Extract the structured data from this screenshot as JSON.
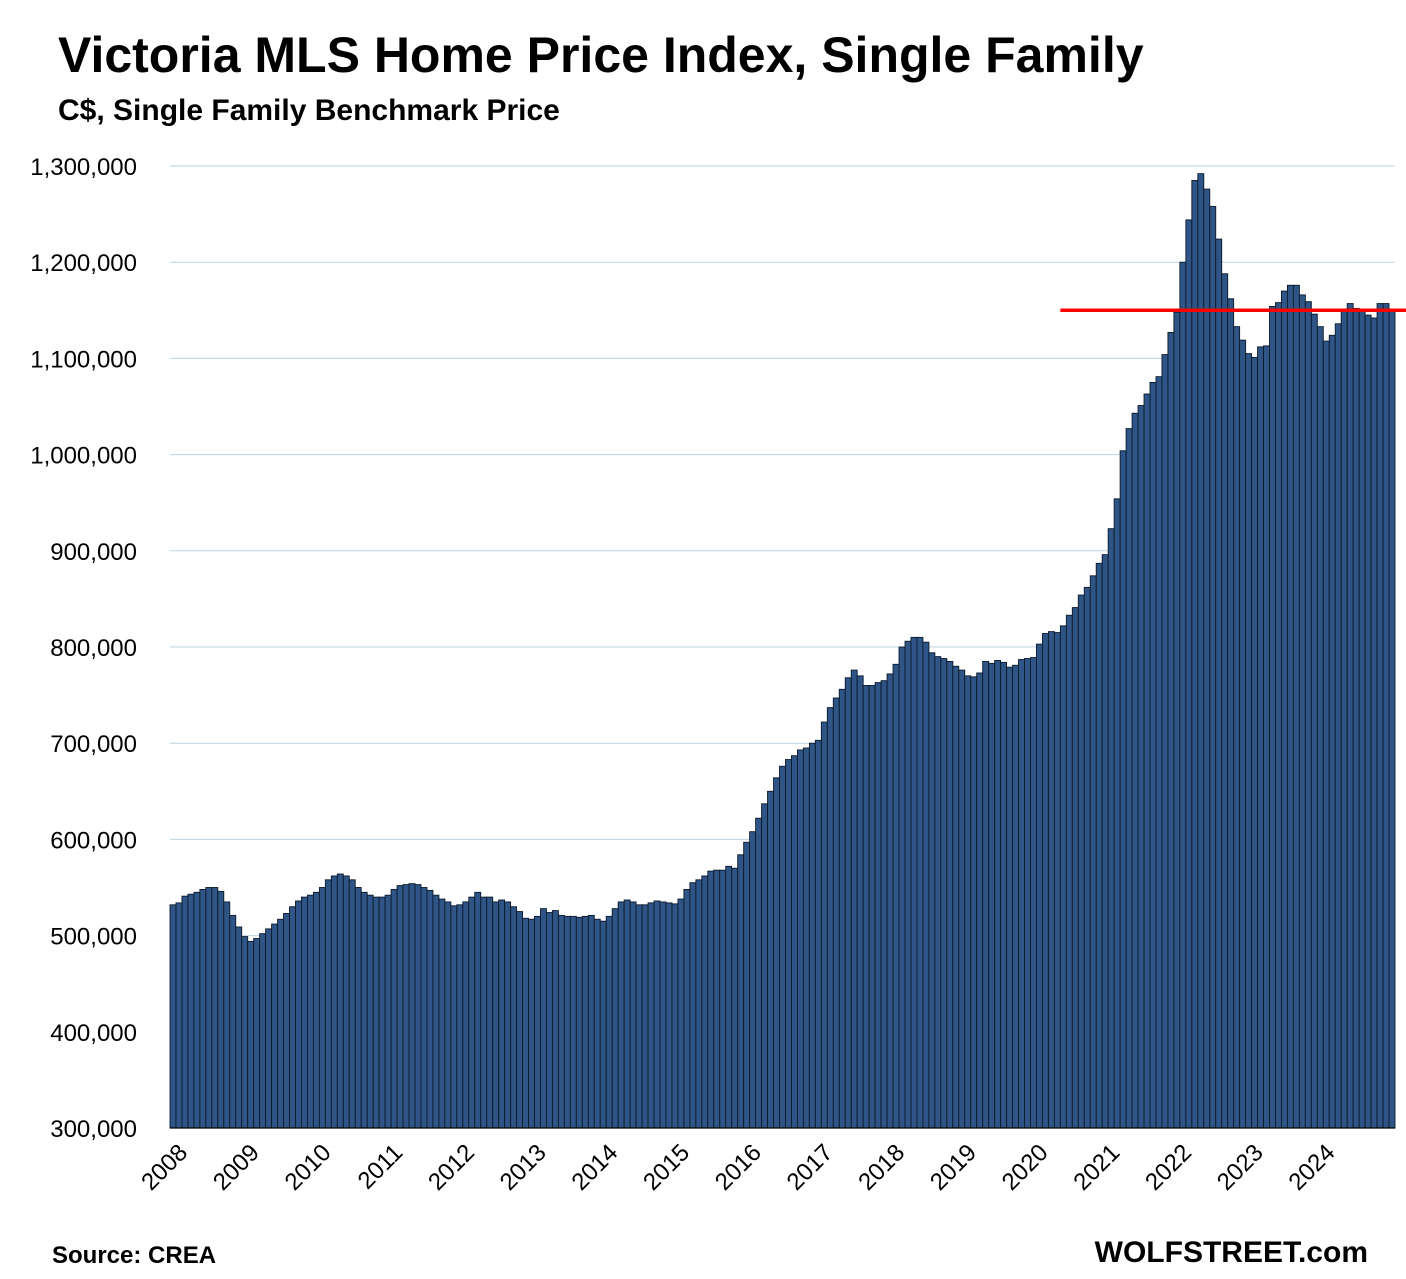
{
  "header": {
    "title": "Victoria MLS Home Price Index, Single Family",
    "subtitle": "C$, Single Family Benchmark Price"
  },
  "footer": {
    "source": "Source: CREA",
    "brand": "WOLFSTREET.com"
  },
  "colors": {
    "bar_fill": "#2E5585",
    "bar_stroke": "#0B1A2E",
    "reference_line": "#FF0000",
    "grid": "#BFD3E0"
  },
  "chart_data": {
    "type": "bar",
    "title": "Victoria MLS Home Price Index, Single Family",
    "subtitle": "C$, Single Family Benchmark Price",
    "ylim": [
      300000,
      1300000
    ],
    "yticks": [
      "300,000",
      "400,000",
      "500,000",
      "600,000",
      "700,000",
      "800,000",
      "900,000",
      "1,000,000",
      "1,100,000",
      "1,200,000",
      "1,300,000"
    ],
    "ytick_values": [
      300000,
      400000,
      500000,
      600000,
      700000,
      800000,
      900000,
      1000000,
      1100000,
      1200000,
      1300000
    ],
    "xticks": [
      "2008",
      "2009",
      "2010",
      "2011",
      "2012",
      "2013",
      "2014",
      "2015",
      "2016",
      "2017",
      "2018",
      "2019",
      "2020",
      "2021",
      "2022",
      "2023",
      "2024"
    ],
    "start": "2008-01",
    "frequency": "monthly",
    "grid": true,
    "reference_line": {
      "value": 1150000,
      "from": "2020-06"
    },
    "values": [
      532000,
      534000,
      541000,
      543000,
      545000,
      548000,
      550000,
      550000,
      546000,
      535000,
      521000,
      509000,
      499000,
      494000,
      497000,
      502000,
      507000,
      512000,
      517000,
      523000,
      530000,
      536000,
      540000,
      542000,
      545000,
      550000,
      558000,
      562000,
      564000,
      562000,
      558000,
      550000,
      545000,
      542000,
      540000,
      540000,
      542000,
      548000,
      552000,
      553000,
      554000,
      553000,
      550000,
      547000,
      542000,
      538000,
      535000,
      531000,
      532000,
      535000,
      540000,
      545000,
      540000,
      540000,
      535000,
      537000,
      535000,
      530000,
      525000,
      518000,
      517000,
      520000,
      528000,
      524000,
      526000,
      521000,
      520000,
      520000,
      519000,
      520000,
      521000,
      517000,
      515000,
      520000,
      528000,
      535000,
      537000,
      535000,
      532000,
      532000,
      534000,
      536000,
      535000,
      534000,
      533000,
      538000,
      548000,
      555000,
      558000,
      562000,
      567000,
      568000,
      568000,
      572000,
      570000,
      584000,
      597000,
      608000,
      622000,
      637000,
      650000,
      664000,
      676000,
      683000,
      687000,
      693000,
      695000,
      700000,
      703000,
      722000,
      737000,
      747000,
      756000,
      768000,
      776000,
      770000,
      760000,
      760000,
      763000,
      765000,
      772000,
      782000,
      800000,
      806000,
      810000,
      810000,
      805000,
      794000,
      790000,
      788000,
      785000,
      780000,
      776000,
      770000,
      769000,
      773000,
      785000,
      783000,
      786000,
      784000,
      779000,
      781000,
      787000,
      788000,
      789000,
      803000,
      814000,
      816000,
      815000,
      822000,
      833000,
      841000,
      854000,
      862000,
      874000,
      887000,
      896000,
      923000,
      954000,
      1004000,
      1027000,
      1043000,
      1051000,
      1063000,
      1075000,
      1081000,
      1104000,
      1127000,
      1148000,
      1200000,
      1244000,
      1285000,
      1292000,
      1276000,
      1258000,
      1224000,
      1188000,
      1162000,
      1133000,
      1119000,
      1105000,
      1101000,
      1112000,
      1113000,
      1154000,
      1158000,
      1170000,
      1176000,
      1176000,
      1166000,
      1159000,
      1146000,
      1133000,
      1118000,
      1124000,
      1136000,
      1150000,
      1157000,
      1152000,
      1151000,
      1145000,
      1142000,
      1157000,
      1157000,
      1149000
    ]
  }
}
